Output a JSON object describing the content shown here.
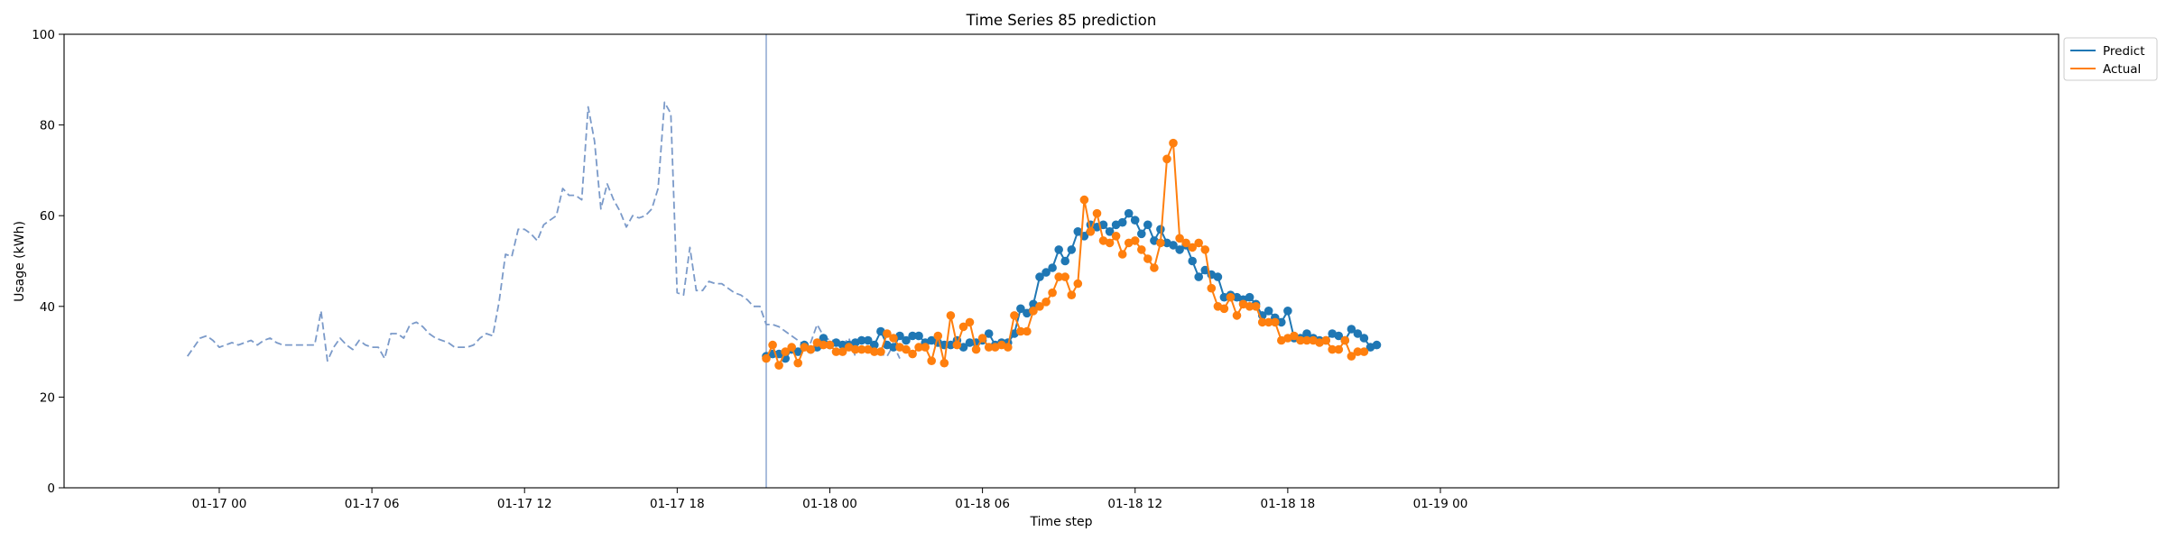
{
  "chart_data": {
    "type": "line",
    "title": "Time Series 85 prediction",
    "xlabel": "Time step",
    "ylabel": "Usage (kWh)",
    "ylim": [
      0,
      100
    ],
    "yticks": [
      0,
      20,
      40,
      60,
      80,
      100
    ],
    "xlim_hours": [
      -6.1,
      72.3
    ],
    "xticks": [
      {
        "label": "01-17 00",
        "hour": 0
      },
      {
        "label": "01-17 06",
        "hour": 6
      },
      {
        "label": "01-17 12",
        "hour": 12
      },
      {
        "label": "01-17 18",
        "hour": 18
      },
      {
        "label": "01-18 00",
        "hour": 24
      },
      {
        "label": "01-18 06",
        "hour": 30
      },
      {
        "label": "01-18 12",
        "hour": 36
      },
      {
        "label": "01-18 18",
        "hour": 42
      },
      {
        "label": "01-19 00",
        "hour": 48
      }
    ],
    "legend_position": "outside-top-right",
    "forecast_start_hour": 21.5,
    "history": {
      "color": "#7b9ac9",
      "start_hour": -1.25,
      "step_hours": 0.25,
      "values": [
        29,
        31,
        33,
        33.5,
        32.5,
        31,
        31.5,
        32,
        31.5,
        32,
        32.5,
        31.5,
        32.5,
        33,
        32,
        31.5,
        31.5,
        31.5,
        31.5,
        31.5,
        31.5,
        39,
        28,
        31,
        33,
        31.5,
        30.5,
        32.5,
        31.5,
        31,
        31,
        28.5,
        34,
        34,
        33,
        36,
        36.5,
        35.5,
        34,
        33,
        32.5,
        32,
        31,
        31,
        31,
        31.5,
        33,
        34,
        33.5,
        41,
        51.5,
        51,
        57,
        57,
        56,
        54.5,
        58,
        59,
        60,
        66,
        64.5,
        64.5,
        63.5,
        84,
        76.5,
        61.5,
        67,
        63.5,
        61,
        57.5,
        60,
        59.5,
        60,
        61.5,
        66,
        85,
        82.5,
        43,
        42.5,
        53,
        43.5,
        43.5,
        45.5,
        45,
        45,
        44,
        43,
        42.5,
        41.5,
        40,
        40,
        36,
        36,
        35.5,
        34.5,
        33.5,
        32.5,
        31.5,
        32,
        36,
        33.5,
        32.5,
        32.5,
        31.5,
        33,
        29,
        33.5,
        31.5,
        29.5,
        29.5,
        29,
        31.5,
        28.5
      ]
    },
    "series": [
      {
        "name": "Predict",
        "color": "#1f77b4",
        "start_hour": 21.5,
        "step_hours": 0.25,
        "values": [
          29,
          29.5,
          29.5,
          28.5,
          30.5,
          30,
          31.5,
          30.5,
          31,
          33,
          31.5,
          32,
          31.5,
          31.5,
          32,
          32.5,
          32.5,
          31.5,
          34.5,
          31.5,
          31,
          33.5,
          32.5,
          33.5,
          33.5,
          32,
          32.5,
          32,
          31.5,
          31.5,
          32.5,
          31,
          32,
          32,
          32.5,
          34,
          31.5,
          32,
          32,
          34,
          39.5,
          38.5,
          40.5,
          46.5,
          47.5,
          48.5,
          52.5,
          50,
          52.5,
          56.5,
          55.5,
          58,
          57.5,
          58,
          56.5,
          58,
          58.5,
          60.5,
          59,
          56,
          58,
          54.5,
          57,
          54,
          53.5,
          52.5,
          53.5,
          50,
          46.5,
          48,
          47,
          46.5,
          42,
          42.5,
          42,
          41.5,
          42,
          40.5,
          38,
          39,
          37.5,
          36.5,
          39,
          33,
          33,
          34,
          33,
          32.5,
          32.5,
          34,
          33.5,
          32.5,
          35,
          34,
          33,
          31,
          31.5
        ]
      },
      {
        "name": "Actual",
        "color": "#ff7f0e",
        "start_hour": 21.5,
        "step_hours": 0.25,
        "values": [
          28.5,
          31.5,
          27,
          30,
          31,
          27.5,
          31,
          30.5,
          32,
          31.5,
          31.5,
          30,
          30,
          31,
          30.5,
          30.5,
          30.5,
          30,
          30,
          34,
          33,
          31,
          30.5,
          29.5,
          31,
          31,
          28,
          33.5,
          27.5,
          38,
          31.5,
          35.5,
          36.5,
          30.5,
          33,
          31,
          31,
          31.5,
          31,
          38,
          34.5,
          34.5,
          39,
          40,
          41,
          43,
          46.5,
          46.5,
          42.5,
          45,
          63.5,
          56.5,
          60.5,
          54.5,
          54,
          55.5,
          51.5,
          54,
          54.5,
          52.5,
          50.5,
          48.5,
          54,
          72.5,
          76,
          55,
          54,
          53,
          54,
          52.5,
          44,
          40,
          39.5,
          42,
          38,
          40.5,
          40,
          40,
          36.5,
          36.5,
          36.5,
          32.5,
          33,
          33.5,
          32.5,
          32.5,
          32.5,
          32,
          32.5,
          30.5,
          30.5,
          32.5,
          29,
          30,
          30
        ]
      }
    ]
  }
}
